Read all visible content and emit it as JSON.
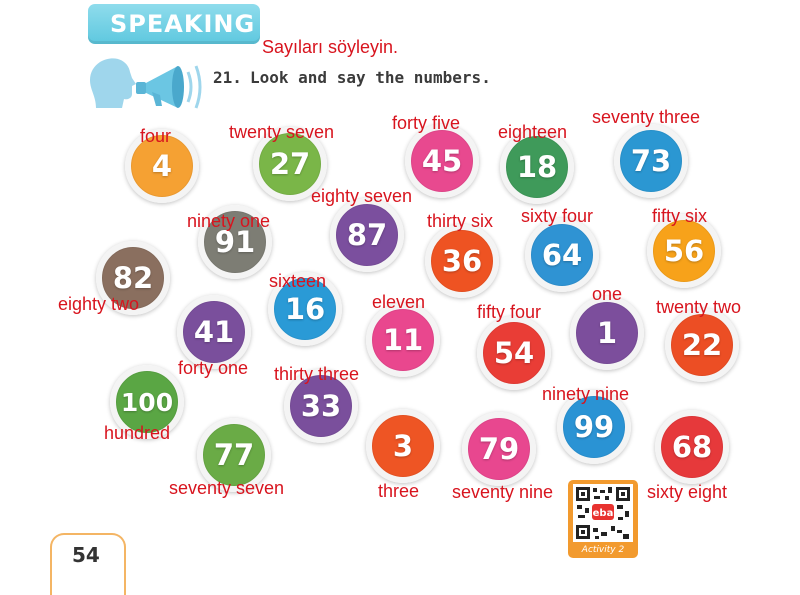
{
  "header": {
    "section_title": "SPEAKING",
    "subtitle": "Sayıları söyleyin.",
    "instruction_number": "21.",
    "instruction_text": "Look and say the numbers."
  },
  "numbers": [
    {
      "id": "4",
      "value": "4",
      "word": "four",
      "color": "#f5a133"
    },
    {
      "id": "27",
      "value": "27",
      "word": "twenty seven",
      "color": "#7ab648"
    },
    {
      "id": "45",
      "value": "45",
      "word": "forty five",
      "color": "#e8498f"
    },
    {
      "id": "18",
      "value": "18",
      "word": "eighteen",
      "color": "#3f9a5a"
    },
    {
      "id": "73",
      "value": "73",
      "word": "seventy three",
      "color": "#2b97d2"
    },
    {
      "id": "91",
      "value": "91",
      "word": "ninety one",
      "color": "#7d7d74"
    },
    {
      "id": "87",
      "value": "87",
      "word": "eighty seven",
      "color": "#7b4f9e"
    },
    {
      "id": "36",
      "value": "36",
      "word": "thirty six",
      "color": "#ee5322"
    },
    {
      "id": "64",
      "value": "64",
      "word": "sixty four",
      "color": "#2f93d3"
    },
    {
      "id": "56",
      "value": "56",
      "word": "fifty six",
      "color": "#f7a21a"
    },
    {
      "id": "82",
      "value": "82",
      "word": "eighty two",
      "color": "#8a6f5f"
    },
    {
      "id": "16",
      "value": "16",
      "word": "sixteen",
      "color": "#2a9ad6"
    },
    {
      "id": "41",
      "value": "41",
      "word": "forty one",
      "color": "#7a4f9c"
    },
    {
      "id": "11",
      "value": "11",
      "word": "eleven",
      "color": "#e9478e"
    },
    {
      "id": "54",
      "value": "54",
      "word": "fifty four",
      "color": "#e93d36"
    },
    {
      "id": "1",
      "value": "1",
      "word": "one",
      "color": "#7c4e9c"
    },
    {
      "id": "22",
      "value": "22",
      "word": "twenty two",
      "color": "#ec4e24"
    },
    {
      "id": "100",
      "value": "100",
      "word": "hundred",
      "color": "#5aa644"
    },
    {
      "id": "33",
      "value": "33",
      "word": "thirty three",
      "color": "#7a4f9c"
    },
    {
      "id": "3",
      "value": "3",
      "word": "three",
      "color": "#ee5524"
    },
    {
      "id": "79",
      "value": "79",
      "word": "seventy nine",
      "color": "#e8478f"
    },
    {
      "id": "99",
      "value": "99",
      "word": "ninety nine",
      "color": "#2a93d4"
    },
    {
      "id": "68",
      "value": "68",
      "word": "sixty eight",
      "color": "#e6393b"
    },
    {
      "id": "77",
      "value": "77",
      "word": "seventy seven",
      "color": "#6aab46"
    }
  ],
  "qr_code": {
    "label": "Activity 2"
  },
  "page_number": "54"
}
